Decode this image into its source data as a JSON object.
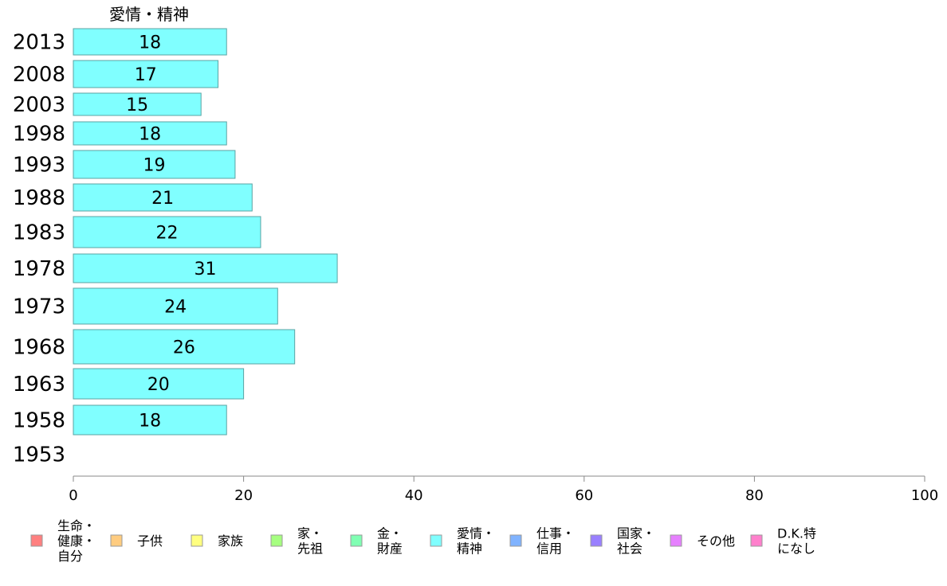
{
  "chart_data": {
    "type": "bar",
    "orientation": "horizontal",
    "series": [
      {
        "name": "愛情・精神",
        "color": "#80ffff",
        "values": [
          18,
          17,
          15,
          18,
          19,
          21,
          22,
          31,
          24,
          26,
          20,
          18,
          null
        ]
      }
    ],
    "categories": [
      "2013",
      "2008",
      "2003",
      "1998",
      "1993",
      "1988",
      "1983",
      "1978",
      "1973",
      "1968",
      "1963",
      "1958",
      "1953"
    ],
    "column_header": "愛情・精神",
    "xlim": [
      0,
      100
    ],
    "x_ticks": [
      "0",
      "20",
      "40",
      "60",
      "80",
      "100"
    ],
    "grid": false,
    "legend_position": "bottom",
    "legend": [
      {
        "lines": [
          "生命・",
          "健康・",
          "自分"
        ],
        "color": "#ff8080"
      },
      {
        "lines": [
          "子供"
        ],
        "color": "#ffcc80"
      },
      {
        "lines": [
          "家族"
        ],
        "color": "#ffff80"
      },
      {
        "lines": [
          "家・",
          "先祖"
        ],
        "color": "#a6ff80"
      },
      {
        "lines": [
          "金・",
          "財産"
        ],
        "color": "#80ffb3"
      },
      {
        "lines": [
          "愛情・",
          "精神"
        ],
        "color": "#80ffff"
      },
      {
        "lines": [
          "仕事・",
          "信用"
        ],
        "color": "#80b3ff"
      },
      {
        "lines": [
          "国家・",
          "社会"
        ],
        "color": "#9980ff"
      },
      {
        "lines": [
          "その他"
        ],
        "color": "#e680ff"
      },
      {
        "lines": [
          "D.K.特",
          "になし"
        ],
        "color": "#ff80cc"
      }
    ]
  }
}
